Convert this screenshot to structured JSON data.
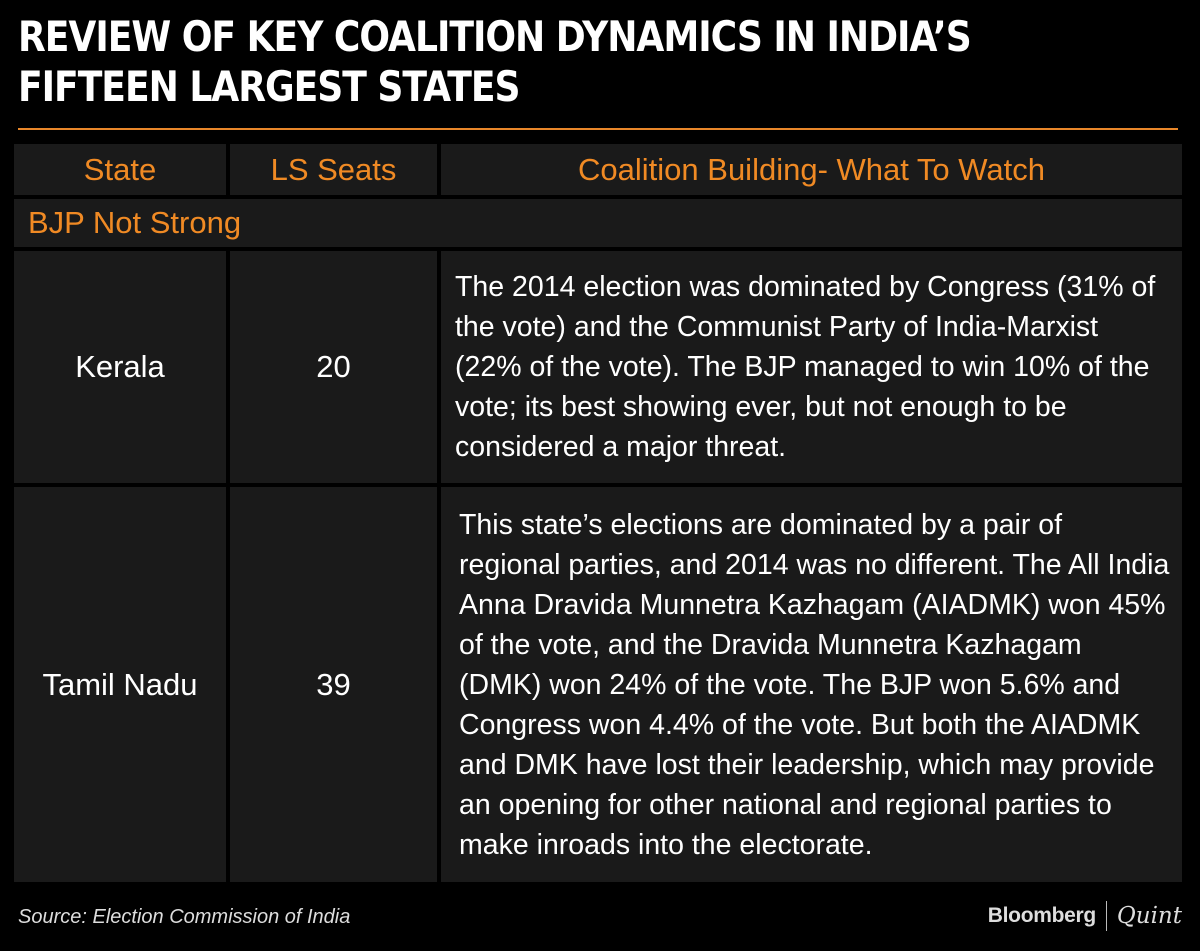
{
  "title": "REVIEW OF KEY COALITION DYNAMICS IN INDIA’S\nFIFTEEN LARGEST STATES",
  "colors": {
    "accent": "#f08a24",
    "cell_bg": "#1a1a1a",
    "background": "#000000"
  },
  "table": {
    "headers": [
      "State",
      "LS Seats",
      "Coalition Building- What To Watch"
    ],
    "section": "BJP Not Strong",
    "rows": [
      {
        "state": "Kerala",
        "seats": "20",
        "text": "The 2014 election was dominated by Congress (31% of the vote) and the Communist Party of India-Marxist (22% of the vote). The BJP managed to win 10% of the vote; its best showing ever, but not enough to be considered a major threat."
      },
      {
        "state": "Tamil Nadu",
        "seats": "39",
        "text": "This state’s elections are dominated by a pair of regional parties, and 2014 was no different. The All India Anna Dravida Munnetra Kazhagam (AIADMK) won 45% of the vote, and the Dravida Munnetra Kazhagam (DMK) won 24% of the vote. The BJP won 5.6% and Congress won 4.4% of the vote. But both the AIADMK and DMK have lost their leadership, which may provide an opening for other national and regional parties to make inroads into the electorate."
      }
    ]
  },
  "footer": {
    "source": "Source: Election Commission of India",
    "brand_left": "Bloomberg",
    "brand_right": "Quint"
  }
}
